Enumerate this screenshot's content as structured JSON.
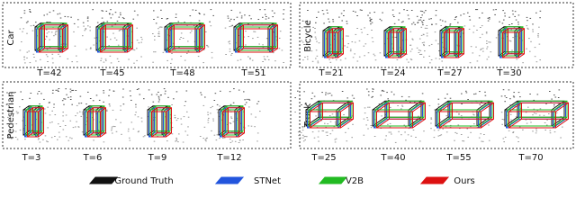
{
  "panels": [
    {
      "label": "Car",
      "frames": [
        "T=42",
        "T=45",
        "T=48",
        "T=51"
      ]
    },
    {
      "label": "Bicycle",
      "frames": [
        "T=21",
        "T=24",
        "T=27",
        "T=30"
      ]
    },
    {
      "label": "Pedestrian",
      "frames": [
        "T=3",
        "T=6",
        "T=9",
        "T=12"
      ]
    },
    {
      "label": "Truck",
      "frames": [
        "T=25",
        "T=40",
        "T=55",
        "T=70"
      ]
    }
  ],
  "legend": [
    "Ground Truth",
    "STNet",
    "V2B",
    "Ours"
  ]
}
